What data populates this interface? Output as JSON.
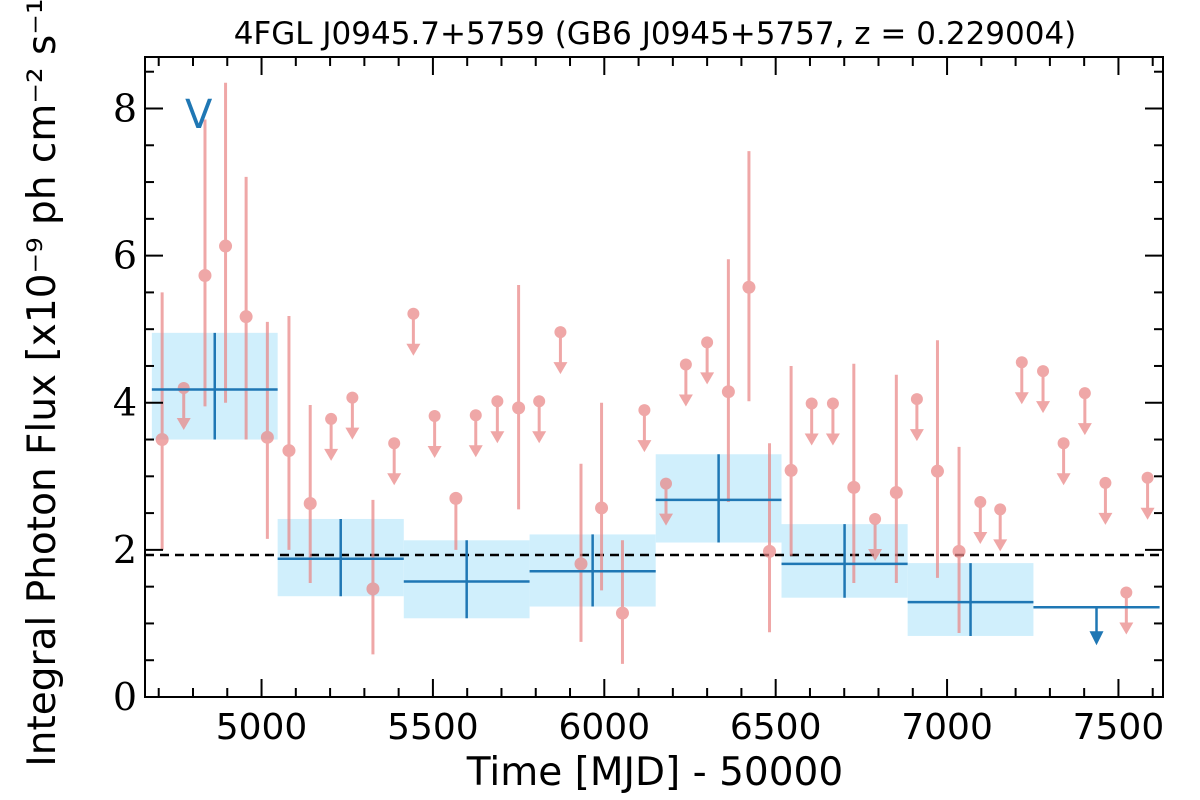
{
  "chart_data": {
    "type": "scatter",
    "title": "4FGL J0945.7+5759 (GB6 J0945+5757, z = 0.229004)",
    "xlabel": "Time [MJD] - 50000",
    "ylabel": "Integral Photon Flux [x10⁻⁹ ph cm⁻² s⁻¹]",
    "xlim": [
      4660,
      7630
    ],
    "ylim": [
      0,
      8.7
    ],
    "xticks": [
      5000,
      5500,
      6000,
      6500,
      7000,
      7500
    ],
    "yticks": [
      0,
      2,
      4,
      6,
      8
    ],
    "annotation": "V",
    "mean_flux": 1.93,
    "colors": {
      "short_bins": "#ea8686",
      "long_bins": "#1f77b4",
      "long_bins_fill": "#cdeefc",
      "mean_line": "#000000"
    },
    "long_bins": [
      {
        "x0": 4680,
        "x1": 5047,
        "y": 4.18,
        "ylo": 3.5,
        "yhi": 4.95,
        "upper_limit": false
      },
      {
        "x0": 5047,
        "x1": 5415,
        "y": 1.88,
        "ylo": 1.37,
        "yhi": 2.42,
        "upper_limit": false
      },
      {
        "x0": 5415,
        "x1": 5782,
        "y": 1.57,
        "ylo": 1.07,
        "yhi": 2.13,
        "upper_limit": false
      },
      {
        "x0": 5782,
        "x1": 6150,
        "y": 1.71,
        "ylo": 1.23,
        "yhi": 2.21,
        "upper_limit": false
      },
      {
        "x0": 6150,
        "x1": 6517,
        "y": 2.68,
        "ylo": 2.1,
        "yhi": 3.3,
        "upper_limit": false
      },
      {
        "x0": 6517,
        "x1": 6885,
        "y": 1.81,
        "ylo": 1.35,
        "yhi": 2.35,
        "upper_limit": false
      },
      {
        "x0": 6885,
        "x1": 7252,
        "y": 1.29,
        "ylo": 0.83,
        "yhi": 1.82,
        "upper_limit": false
      },
      {
        "x0": 7252,
        "x1": 7620,
        "y": 1.22,
        "upper_limit": true
      }
    ],
    "short_bins": [
      {
        "x": 4710,
        "y": 3.5,
        "ylo": 2.0,
        "yhi": 5.5,
        "upper_limit": false
      },
      {
        "x": 4773,
        "y": 4.2,
        "upper_limit": true
      },
      {
        "x": 4835,
        "y": 5.73,
        "ylo": 3.95,
        "yhi": 7.85,
        "upper_limit": false
      },
      {
        "x": 4895,
        "y": 6.13,
        "ylo": 4.0,
        "yhi": 8.35,
        "upper_limit": false
      },
      {
        "x": 4955,
        "y": 5.17,
        "ylo": 3.5,
        "yhi": 7.07,
        "upper_limit": false
      },
      {
        "x": 5017,
        "y": 3.53,
        "ylo": 2.15,
        "yhi": 5.1,
        "upper_limit": false
      },
      {
        "x": 5080,
        "y": 3.35,
        "ylo": 2.0,
        "yhi": 5.18,
        "upper_limit": false
      },
      {
        "x": 5142,
        "y": 2.63,
        "ylo": 1.55,
        "yhi": 3.97,
        "upper_limit": false
      },
      {
        "x": 5203,
        "y": 3.78,
        "upper_limit": true
      },
      {
        "x": 5265,
        "y": 4.07,
        "upper_limit": true
      },
      {
        "x": 5325,
        "y": 1.47,
        "ylo": 0.58,
        "yhi": 2.68,
        "upper_limit": false
      },
      {
        "x": 5387,
        "y": 3.45,
        "upper_limit": true
      },
      {
        "x": 5443,
        "y": 5.21,
        "upper_limit": true
      },
      {
        "x": 5505,
        "y": 3.82,
        "upper_limit": true
      },
      {
        "x": 5567,
        "y": 2.7,
        "ylo": 2.0,
        "yhi": 2.75,
        "upper_limit": false
      },
      {
        "x": 5625,
        "y": 3.83,
        "upper_limit": true
      },
      {
        "x": 5688,
        "y": 4.02,
        "upper_limit": true
      },
      {
        "x": 5750,
        "y": 3.93,
        "ylo": 2.55,
        "yhi": 5.6,
        "upper_limit": false
      },
      {
        "x": 5810,
        "y": 4.02,
        "upper_limit": true
      },
      {
        "x": 5872,
        "y": 4.96,
        "upper_limit": true
      },
      {
        "x": 5932,
        "y": 1.81,
        "ylo": 0.75,
        "yhi": 3.17,
        "upper_limit": false
      },
      {
        "x": 5992,
        "y": 2.57,
        "ylo": 1.45,
        "yhi": 4.0,
        "upper_limit": false
      },
      {
        "x": 6053,
        "y": 1.14,
        "ylo": 0.45,
        "yhi": 2.13,
        "upper_limit": false
      },
      {
        "x": 6117,
        "y": 3.9,
        "upper_limit": true
      },
      {
        "x": 6180,
        "y": 2.9,
        "upper_limit": true
      },
      {
        "x": 6238,
        "y": 4.52,
        "upper_limit": true
      },
      {
        "x": 6300,
        "y": 4.82,
        "upper_limit": true
      },
      {
        "x": 6362,
        "y": 4.15,
        "ylo": 2.65,
        "yhi": 5.95,
        "upper_limit": false
      },
      {
        "x": 6422,
        "y": 5.57,
        "ylo": 4.02,
        "yhi": 7.42,
        "upper_limit": false
      },
      {
        "x": 6482,
        "y": 1.98,
        "ylo": 0.88,
        "yhi": 3.45,
        "upper_limit": false
      },
      {
        "x": 6545,
        "y": 3.08,
        "ylo": 1.92,
        "yhi": 4.5,
        "upper_limit": false
      },
      {
        "x": 6605,
        "y": 3.99,
        "upper_limit": true
      },
      {
        "x": 6667,
        "y": 3.99,
        "upper_limit": true
      },
      {
        "x": 6728,
        "y": 2.85,
        "ylo": 1.55,
        "yhi": 4.53,
        "upper_limit": false
      },
      {
        "x": 6790,
        "y": 2.42,
        "upper_limit": true
      },
      {
        "x": 6852,
        "y": 2.78,
        "ylo": 1.55,
        "yhi": 4.38,
        "upper_limit": false
      },
      {
        "x": 6912,
        "y": 4.05,
        "upper_limit": true
      },
      {
        "x": 6972,
        "y": 3.07,
        "ylo": 1.62,
        "yhi": 4.85,
        "upper_limit": false
      },
      {
        "x": 7035,
        "y": 1.98,
        "ylo": 0.87,
        "yhi": 3.4,
        "upper_limit": false
      },
      {
        "x": 7097,
        "y": 2.65,
        "upper_limit": true
      },
      {
        "x": 7155,
        "y": 2.55,
        "upper_limit": true
      },
      {
        "x": 7218,
        "y": 4.55,
        "upper_limit": true
      },
      {
        "x": 7280,
        "y": 4.43,
        "upper_limit": true
      },
      {
        "x": 7340,
        "y": 3.45,
        "upper_limit": true
      },
      {
        "x": 7402,
        "y": 4.13,
        "upper_limit": true
      },
      {
        "x": 7462,
        "y": 2.91,
        "upper_limit": true
      },
      {
        "x": 7523,
        "y": 1.42,
        "upper_limit": true
      },
      {
        "x": 7585,
        "y": 2.98,
        "upper_limit": true
      }
    ]
  }
}
